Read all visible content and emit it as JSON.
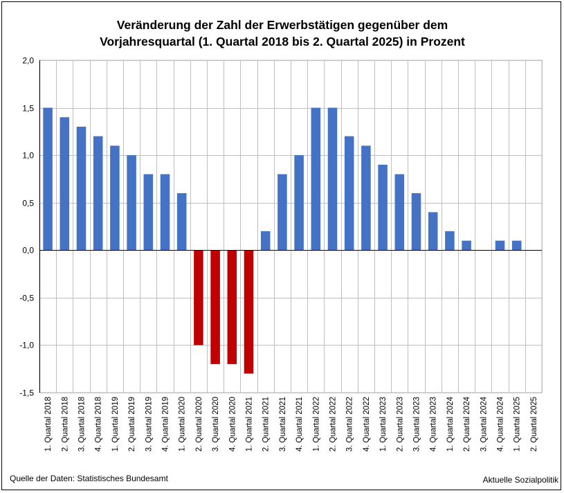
{
  "chart_data": {
    "type": "bar",
    "title_lines": [
      "Veränderung der Zahl der Erwerbstätigen gegenüber dem",
      "Vorjahresquartal (1. Quartal 2018 bis 2. Quartal 2025) in Prozent"
    ],
    "categories": [
      "1. Quartal 2018",
      "2. Quartal 2018",
      "3. Quartal 2018",
      "4. Quartal 2018",
      "1. Quartal 2019",
      "2. Quartal 2019",
      "3. Quartal 2019",
      "4. Quartal 2019",
      "1. Quartal 2020",
      "2. Quartal 2020",
      "3. Quartal 2020",
      "4. Quartal 2020",
      "1. Quartal 2021",
      "2. Quartal 2021",
      "3. Quartal 2021",
      "4. Quartal 2021",
      "1. Quartal 2022",
      "2. Quartal 2022",
      "3. Quartal 2022",
      "4. Quartal 2022",
      "1. Quartal 2023",
      "2. Quartal 2023",
      "3. Quartal 2023",
      "4. Quartal 2023",
      "1. Quartal 2024",
      "2. Quartal 2024",
      "3. Quartal 2024",
      "4. Quartal 2024",
      "1. Quartal 2025",
      "2. Quartal 2025"
    ],
    "values": [
      1.5,
      1.4,
      1.3,
      1.2,
      1.1,
      1.0,
      0.8,
      0.8,
      0.6,
      -1.0,
      -1.2,
      -1.2,
      -1.3,
      0.2,
      0.8,
      1.0,
      1.5,
      1.5,
      1.2,
      1.1,
      0.9,
      0.8,
      0.6,
      0.4,
      0.2,
      0.1,
      0.0,
      0.1,
      0.1,
      null
    ],
    "ylim": [
      -1.5,
      2.0
    ],
    "yticks": [
      2.0,
      1.5,
      1.0,
      0.5,
      0.0,
      -0.5,
      -1.0,
      -1.5
    ],
    "ytick_labels": [
      "2,0",
      "1,5",
      "1,0",
      "0,5",
      "0,0",
      "-0,5",
      "-1,0",
      "-1,5"
    ],
    "xlabel": "",
    "ylabel": "",
    "grid": true,
    "colors": {
      "positive": "#4472C4",
      "negative": "#C00000",
      "grid": "#BFBFBF",
      "axis": "#000000"
    }
  },
  "footer": {
    "source": "Quelle der Daten: Statistisches Bundesamt",
    "publisher": "Aktuelle Sozialpolitik"
  }
}
